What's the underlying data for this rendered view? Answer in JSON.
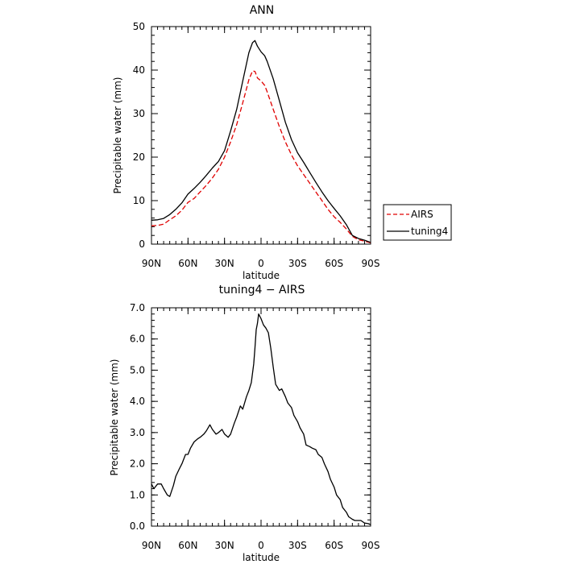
{
  "chart_data": [
    {
      "type": "line",
      "title": "ANN",
      "xlabel": "latitude",
      "ylabel": "Precipitable water (mm)",
      "x_tick_labels": [
        "90N",
        "60N",
        "30N",
        "0",
        "30S",
        "60S",
        "90S"
      ],
      "x_tick_values": [
        90,
        60,
        30,
        0,
        -30,
        -60,
        -90
      ],
      "xlim": [
        90,
        -90
      ],
      "y_tick_labels": [
        "0",
        "10",
        "20",
        "30",
        "40",
        "50"
      ],
      "y_tick_values": [
        0,
        10,
        20,
        30,
        40,
        50
      ],
      "ylim": [
        0,
        50
      ],
      "legend_position": "right",
      "x": [
        90,
        85,
        80,
        75,
        70,
        65,
        60,
        55,
        50,
        45,
        40,
        35,
        30,
        25,
        20,
        15,
        10,
        7,
        5,
        3,
        0,
        -3,
        -5,
        -10,
        -15,
        -20,
        -25,
        -30,
        -35,
        -40,
        -45,
        -50,
        -55,
        -60,
        -65,
        -70,
        -75,
        -80,
        -85,
        -90
      ],
      "series": [
        {
          "name": "AIRS",
          "color": "#e00000",
          "dash": "dashed",
          "values": [
            4.2,
            4.3,
            4.6,
            5.6,
            6.5,
            7.8,
            9.6,
            10.5,
            12.0,
            13.5,
            15.2,
            17.2,
            20.0,
            23.5,
            27.5,
            32.5,
            37.8,
            39.8,
            39.7,
            38.2,
            37.5,
            36.5,
            35.0,
            31.0,
            27.0,
            23.5,
            20.5,
            18.0,
            16.0,
            14.0,
            12.0,
            10.0,
            8.0,
            6.3,
            5.0,
            3.5,
            1.8,
            1.0,
            0.7,
            0.3
          ]
        },
        {
          "name": "tuning4",
          "color": "#000000",
          "dash": "solid",
          "values": [
            5.5,
            5.6,
            5.9,
            6.8,
            8.0,
            9.5,
            11.5,
            12.8,
            14.2,
            15.8,
            17.5,
            19.0,
            21.5,
            26.0,
            31.0,
            37.5,
            44.0,
            46.3,
            46.8,
            45.5,
            44.2,
            43.3,
            42.0,
            38.0,
            33.0,
            28.0,
            24.0,
            21.0,
            18.8,
            16.5,
            14.2,
            12.0,
            10.0,
            8.2,
            6.5,
            4.5,
            2.0,
            1.3,
            0.9,
            0.4
          ]
        }
      ]
    },
    {
      "type": "line",
      "title": "tuning4 − AIRS",
      "xlabel": "latitude",
      "ylabel": "Precipitable water (mm)",
      "x_tick_labels": [
        "90N",
        "60N",
        "30N",
        "0",
        "30S",
        "60S",
        "90S"
      ],
      "x_tick_values": [
        90,
        60,
        30,
        0,
        -30,
        -60,
        -90
      ],
      "xlim": [
        90,
        -90
      ],
      "y_tick_labels": [
        "0.0",
        "1.0",
        "2.0",
        "3.0",
        "4.0",
        "5.0",
        "6.0",
        "7.0"
      ],
      "y_tick_values": [
        0,
        1,
        2,
        3,
        4,
        5,
        6,
        7
      ],
      "ylim": [
        0,
        7
      ],
      "x": [
        90,
        88,
        85,
        82,
        80,
        77,
        75,
        72,
        70,
        67,
        65,
        62,
        60,
        58,
        55,
        52,
        50,
        47,
        45,
        42,
        40,
        37,
        35,
        32,
        30,
        27,
        25,
        22,
        20,
        17,
        15,
        12,
        10,
        8,
        7,
        6,
        5,
        4,
        3,
        2,
        0,
        -2,
        -4,
        -6,
        -8,
        -10,
        -12,
        -15,
        -17,
        -20,
        -22,
        -25,
        -27,
        -30,
        -32,
        -35,
        -37,
        -40,
        -42,
        -45,
        -47,
        -50,
        -52,
        -55,
        -57,
        -60,
        -62,
        -65,
        -67,
        -70,
        -72,
        -75,
        -77,
        -80,
        -82,
        -85,
        -88,
        -90
      ],
      "series": [
        {
          "name": "",
          "color": "#000000",
          "dash": "solid",
          "values": [
            1.35,
            1.2,
            1.35,
            1.35,
            1.2,
            1.0,
            0.95,
            1.3,
            1.6,
            1.85,
            2.0,
            2.3,
            2.3,
            2.5,
            2.7,
            2.8,
            2.85,
            2.95,
            3.05,
            3.25,
            3.1,
            2.95,
            3.0,
            3.1,
            2.95,
            2.85,
            2.95,
            3.3,
            3.5,
            3.85,
            3.75,
            4.15,
            4.35,
            4.6,
            4.9,
            5.2,
            5.7,
            6.3,
            6.5,
            6.8,
            6.65,
            6.45,
            6.35,
            6.2,
            5.7,
            5.1,
            4.55,
            4.35,
            4.4,
            4.15,
            3.95,
            3.8,
            3.55,
            3.35,
            3.15,
            2.95,
            2.6,
            2.55,
            2.5,
            2.45,
            2.3,
            2.2,
            2.0,
            1.75,
            1.5,
            1.25,
            1.0,
            0.85,
            0.6,
            0.45,
            0.3,
            0.22,
            0.18,
            0.18,
            0.18,
            0.1,
            0.08,
            0.05
          ]
        }
      ]
    }
  ]
}
